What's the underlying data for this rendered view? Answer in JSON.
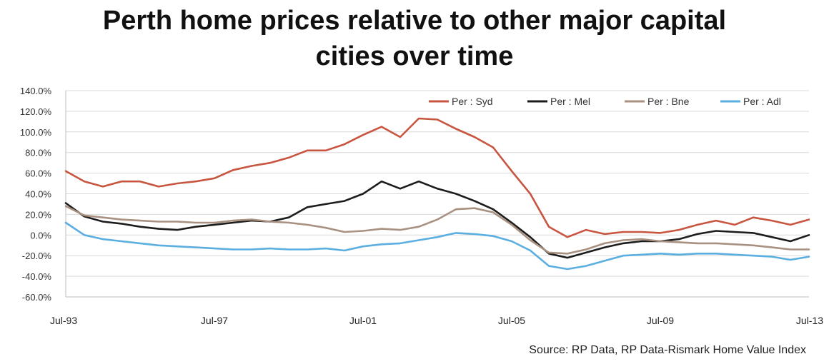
{
  "title": [
    "Perth home prices relative to other major capital",
    "cities over time"
  ],
  "source": "Source: RP Data, RP Data-Rismark Home Value Index",
  "chart_data": {
    "type": "line",
    "title": "Perth home prices relative to other major capital cities over time",
    "xlabel": "",
    "ylabel": "",
    "ylim": [
      -60,
      140
    ],
    "y_ticks": [
      "140.0%",
      "120.0%",
      "100.0%",
      "80.0%",
      "60.0%",
      "40.0%",
      "20.0%",
      "0.0%",
      "-20.0%",
      "-40.0%",
      "-60.0%"
    ],
    "x_ticks": [
      "Jul-93",
      "Jul-97",
      "Jul-01",
      "Jul-05",
      "Jul-09",
      "Jul-13"
    ],
    "x_tick_years": [
      1993.5,
      1997.5,
      2001.5,
      2005.5,
      2009.5,
      2013.5
    ],
    "xlim": [
      1993.5,
      2013.5
    ],
    "grid": "horizontal",
    "legend_position": "top-right",
    "series": [
      {
        "name": "Per : Syd",
        "color": "#c8553f",
        "points": [
          [
            1993.5,
            62
          ],
          [
            1994,
            52
          ],
          [
            1994.5,
            47
          ],
          [
            1995,
            52
          ],
          [
            1995.5,
            52
          ],
          [
            1996,
            47
          ],
          [
            1996.5,
            50
          ],
          [
            1997,
            52
          ],
          [
            1997.5,
            55
          ],
          [
            1998,
            63
          ],
          [
            1998.5,
            67
          ],
          [
            1999,
            70
          ],
          [
            1999.5,
            75
          ],
          [
            2000,
            82
          ],
          [
            2000.5,
            82
          ],
          [
            2001,
            88
          ],
          [
            2001.5,
            97
          ],
          [
            2002,
            105
          ],
          [
            2002.5,
            95
          ],
          [
            2003,
            113
          ],
          [
            2003.5,
            112
          ],
          [
            2004,
            103
          ],
          [
            2004.5,
            95
          ],
          [
            2005,
            85
          ],
          [
            2005.5,
            62
          ],
          [
            2006,
            40
          ],
          [
            2006.5,
            8
          ],
          [
            2007,
            -2
          ],
          [
            2007.5,
            5
          ],
          [
            2008,
            1
          ],
          [
            2008.5,
            3
          ],
          [
            2009,
            3
          ],
          [
            2009.5,
            2
          ],
          [
            2010,
            5
          ],
          [
            2010.5,
            10
          ],
          [
            2011,
            14
          ],
          [
            2011.5,
            10
          ],
          [
            2012,
            17
          ],
          [
            2012.5,
            14
          ],
          [
            2013,
            10
          ],
          [
            2013.5,
            15
          ]
        ]
      },
      {
        "name": "Per : Mel",
        "color": "#1c1c1c",
        "points": [
          [
            1993.5,
            31
          ],
          [
            1994,
            18
          ],
          [
            1994.5,
            13
          ],
          [
            1995,
            11
          ],
          [
            1995.5,
            8
          ],
          [
            1996,
            6
          ],
          [
            1996.5,
            5
          ],
          [
            1997,
            8
          ],
          [
            1997.5,
            10
          ],
          [
            1998,
            12
          ],
          [
            1998.5,
            14
          ],
          [
            1999,
            13
          ],
          [
            1999.5,
            17
          ],
          [
            2000,
            27
          ],
          [
            2000.5,
            30
          ],
          [
            2001,
            33
          ],
          [
            2001.5,
            40
          ],
          [
            2002,
            52
          ],
          [
            2002.5,
            45
          ],
          [
            2003,
            52
          ],
          [
            2003.5,
            45
          ],
          [
            2004,
            40
          ],
          [
            2004.5,
            33
          ],
          [
            2005,
            25
          ],
          [
            2005.5,
            12
          ],
          [
            2006,
            -2
          ],
          [
            2006.5,
            -18
          ],
          [
            2007,
            -22
          ],
          [
            2007.5,
            -17
          ],
          [
            2008,
            -12
          ],
          [
            2008.5,
            -8
          ],
          [
            2009,
            -6
          ],
          [
            2009.5,
            -6
          ],
          [
            2010,
            -4
          ],
          [
            2010.5,
            1
          ],
          [
            2011,
            4
          ],
          [
            2011.5,
            3
          ],
          [
            2012,
            2
          ],
          [
            2012.5,
            -2
          ],
          [
            2013,
            -6
          ],
          [
            2013.5,
            0
          ]
        ]
      },
      {
        "name": "Per : Bne",
        "color": "#a89181",
        "points": [
          [
            1993.5,
            28
          ],
          [
            1994,
            19
          ],
          [
            1994.5,
            17
          ],
          [
            1995,
            15
          ],
          [
            1995.5,
            14
          ],
          [
            1996,
            13
          ],
          [
            1996.5,
            13
          ],
          [
            1997,
            12
          ],
          [
            1997.5,
            12
          ],
          [
            1998,
            14
          ],
          [
            1998.5,
            15
          ],
          [
            1999,
            13
          ],
          [
            1999.5,
            12
          ],
          [
            2000,
            10
          ],
          [
            2000.5,
            7
          ],
          [
            2001,
            3
          ],
          [
            2001.5,
            4
          ],
          [
            2002,
            6
          ],
          [
            2002.5,
            5
          ],
          [
            2003,
            8
          ],
          [
            2003.5,
            15
          ],
          [
            2004,
            25
          ],
          [
            2004.5,
            26
          ],
          [
            2005,
            22
          ],
          [
            2005.5,
            10
          ],
          [
            2006,
            -5
          ],
          [
            2006.5,
            -17
          ],
          [
            2007,
            -18
          ],
          [
            2007.5,
            -14
          ],
          [
            2008,
            -8
          ],
          [
            2008.5,
            -5
          ],
          [
            2009,
            -4
          ],
          [
            2009.5,
            -6
          ],
          [
            2010,
            -7
          ],
          [
            2010.5,
            -8
          ],
          [
            2011,
            -8
          ],
          [
            2011.5,
            -9
          ],
          [
            2012,
            -10
          ],
          [
            2012.5,
            -12
          ],
          [
            2013,
            -14
          ],
          [
            2013.5,
            -14
          ]
        ]
      },
      {
        "name": "Per : Adl",
        "color": "#5aaee0",
        "points": [
          [
            1993.5,
            12
          ],
          [
            1994,
            0
          ],
          [
            1994.5,
            -4
          ],
          [
            1995,
            -6
          ],
          [
            1995.5,
            -8
          ],
          [
            1996,
            -10
          ],
          [
            1996.5,
            -11
          ],
          [
            1997,
            -12
          ],
          [
            1997.5,
            -13
          ],
          [
            1998,
            -14
          ],
          [
            1998.5,
            -14
          ],
          [
            1999,
            -13
          ],
          [
            1999.5,
            -14
          ],
          [
            2000,
            -14
          ],
          [
            2000.5,
            -13
          ],
          [
            2001,
            -15
          ],
          [
            2001.5,
            -11
          ],
          [
            2002,
            -9
          ],
          [
            2002.5,
            -8
          ],
          [
            2003,
            -5
          ],
          [
            2003.5,
            -2
          ],
          [
            2004,
            2
          ],
          [
            2004.5,
            1
          ],
          [
            2005,
            -1
          ],
          [
            2005.5,
            -6
          ],
          [
            2006,
            -15
          ],
          [
            2006.5,
            -30
          ],
          [
            2007,
            -33
          ],
          [
            2007.5,
            -30
          ],
          [
            2008,
            -25
          ],
          [
            2008.5,
            -20
          ],
          [
            2009,
            -19
          ],
          [
            2009.5,
            -18
          ],
          [
            2010,
            -19
          ],
          [
            2010.5,
            -18
          ],
          [
            2011,
            -18
          ],
          [
            2011.5,
            -19
          ],
          [
            2012,
            -20
          ],
          [
            2012.5,
            -21
          ],
          [
            2013,
            -24
          ],
          [
            2013.5,
            -21
          ]
        ]
      }
    ]
  }
}
